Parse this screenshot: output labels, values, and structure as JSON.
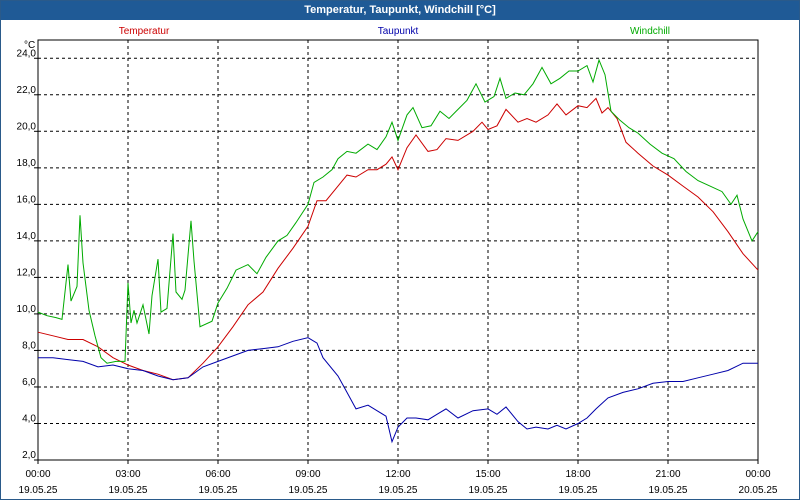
{
  "window": {
    "title": "Temperatur, Taupunkt, Windchill [°C]"
  },
  "chart_data": {
    "type": "line",
    "title": "Temperatur, Taupunkt, Windchill [°C]",
    "ylabel": "°C",
    "ylim": [
      2,
      25
    ],
    "xlim": [
      0,
      24
    ],
    "yticks": [
      2,
      4,
      6,
      8,
      10,
      12,
      14,
      16,
      18,
      20,
      22,
      24
    ],
    "ytick_labels": [
      "2,0",
      "4,0",
      "6,0",
      "8,0",
      "10,0",
      "12,0",
      "14,0",
      "16,0",
      "18,0",
      "20,0",
      "22,0",
      "24,0"
    ],
    "xticks": [
      0,
      3,
      6,
      9,
      12,
      15,
      18,
      21,
      24
    ],
    "xtick_times": [
      "00:00",
      "03:00",
      "06:00",
      "09:00",
      "12:00",
      "15:00",
      "18:00",
      "21:00",
      "00:00"
    ],
    "xtick_dates": [
      "19.05.25",
      "19.05.25",
      "19.05.25",
      "19.05.25",
      "19.05.25",
      "19.05.25",
      "19.05.25",
      "19.05.25",
      "20.05.25"
    ],
    "grid": true,
    "legend": [
      "Temperatur",
      "Taupunkt",
      "Windchill"
    ],
    "series": [
      {
        "name": "Temperatur",
        "color": "#cc0000",
        "points": [
          [
            0,
            9.0
          ],
          [
            0.5,
            8.8
          ],
          [
            1,
            8.6
          ],
          [
            1.5,
            8.6
          ],
          [
            2,
            8.2
          ],
          [
            2.5,
            7.6
          ],
          [
            3,
            7.2
          ],
          [
            3.5,
            6.9
          ],
          [
            4,
            6.7
          ],
          [
            4.5,
            6.4
          ],
          [
            5,
            6.5
          ],
          [
            5.5,
            7.3
          ],
          [
            6,
            8.2
          ],
          [
            6.5,
            9.3
          ],
          [
            7,
            10.5
          ],
          [
            7.5,
            11.2
          ],
          [
            8,
            12.5
          ],
          [
            8.5,
            13.6
          ],
          [
            9,
            14.8
          ],
          [
            9.3,
            16.2
          ],
          [
            9.6,
            16.2
          ],
          [
            10,
            17.0
          ],
          [
            10.3,
            17.6
          ],
          [
            10.6,
            17.5
          ],
          [
            11,
            17.9
          ],
          [
            11.3,
            17.9
          ],
          [
            11.6,
            18.2
          ],
          [
            11.8,
            18.6
          ],
          [
            12,
            17.9
          ],
          [
            12.3,
            19.1
          ],
          [
            12.6,
            19.8
          ],
          [
            13,
            18.9
          ],
          [
            13.3,
            19.0
          ],
          [
            13.6,
            19.6
          ],
          [
            14,
            19.5
          ],
          [
            14.5,
            20.0
          ],
          [
            14.8,
            20.5
          ],
          [
            15,
            20.1
          ],
          [
            15.3,
            20.3
          ],
          [
            15.6,
            21.2
          ],
          [
            16,
            20.5
          ],
          [
            16.3,
            20.7
          ],
          [
            16.6,
            20.5
          ],
          [
            17,
            20.9
          ],
          [
            17.3,
            21.5
          ],
          [
            17.6,
            20.9
          ],
          [
            18,
            21.4
          ],
          [
            18.3,
            21.3
          ],
          [
            18.6,
            21.8
          ],
          [
            18.8,
            21.0
          ],
          [
            19,
            21.3
          ],
          [
            19.3,
            20.7
          ],
          [
            19.6,
            19.4
          ],
          [
            20,
            18.8
          ],
          [
            20.5,
            18.1
          ],
          [
            21,
            17.6
          ],
          [
            21.5,
            17.0
          ],
          [
            22,
            16.4
          ],
          [
            22.5,
            15.6
          ],
          [
            23,
            14.5
          ],
          [
            23.5,
            13.3
          ],
          [
            24,
            12.4
          ]
        ]
      },
      {
        "name": "Taupunkt",
        "color": "#0000aa",
        "points": [
          [
            0,
            7.6
          ],
          [
            0.5,
            7.6
          ],
          [
            1,
            7.5
          ],
          [
            1.5,
            7.4
          ],
          [
            2,
            7.1
          ],
          [
            2.5,
            7.2
          ],
          [
            3,
            7.0
          ],
          [
            3.5,
            6.9
          ],
          [
            4,
            6.6
          ],
          [
            4.5,
            6.4
          ],
          [
            5,
            6.5
          ],
          [
            5.5,
            7.1
          ],
          [
            6,
            7.4
          ],
          [
            6.5,
            7.7
          ],
          [
            7,
            8.0
          ],
          [
            7.5,
            8.1
          ],
          [
            8,
            8.2
          ],
          [
            8.5,
            8.5
          ],
          [
            9,
            8.7
          ],
          [
            9.3,
            8.4
          ],
          [
            9.5,
            7.6
          ],
          [
            10,
            6.6
          ],
          [
            10.3,
            5.7
          ],
          [
            10.6,
            4.8
          ],
          [
            11,
            5.0
          ],
          [
            11.3,
            4.7
          ],
          [
            11.6,
            4.4
          ],
          [
            11.8,
            3.0
          ],
          [
            12,
            3.8
          ],
          [
            12.3,
            4.3
          ],
          [
            12.6,
            4.3
          ],
          [
            13,
            4.2
          ],
          [
            13.3,
            4.5
          ],
          [
            13.6,
            4.8
          ],
          [
            14,
            4.3
          ],
          [
            14.5,
            4.7
          ],
          [
            15,
            4.8
          ],
          [
            15.3,
            4.5
          ],
          [
            15.6,
            4.9
          ],
          [
            16,
            4.1
          ],
          [
            16.3,
            3.7
          ],
          [
            16.6,
            3.8
          ],
          [
            17,
            3.7
          ],
          [
            17.3,
            3.9
          ],
          [
            17.6,
            3.7
          ],
          [
            18,
            4.0
          ],
          [
            18.3,
            4.3
          ],
          [
            18.6,
            4.8
          ],
          [
            19,
            5.4
          ],
          [
            19.5,
            5.7
          ],
          [
            20,
            5.9
          ],
          [
            20.5,
            6.2
          ],
          [
            21,
            6.3
          ],
          [
            21.5,
            6.3
          ],
          [
            22,
            6.5
          ],
          [
            22.5,
            6.7
          ],
          [
            23,
            6.9
          ],
          [
            23.5,
            7.3
          ],
          [
            24,
            7.3
          ]
        ]
      },
      {
        "name": "Windchill",
        "color": "#00aa00",
        "points": [
          [
            0,
            10.1
          ],
          [
            0.3,
            9.9
          ],
          [
            0.6,
            9.8
          ],
          [
            0.8,
            9.7
          ],
          [
            1,
            12.7
          ],
          [
            1.1,
            10.7
          ],
          [
            1.3,
            11.5
          ],
          [
            1.4,
            15.4
          ],
          [
            1.5,
            12.8
          ],
          [
            1.7,
            10.2
          ],
          [
            1.9,
            8.8
          ],
          [
            2.1,
            7.6
          ],
          [
            2.3,
            7.3
          ],
          [
            2.6,
            7.4
          ],
          [
            2.9,
            7.4
          ],
          [
            3,
            11.7
          ],
          [
            3.1,
            9.5
          ],
          [
            3.2,
            10.2
          ],
          [
            3.3,
            9.5
          ],
          [
            3.5,
            10.5
          ],
          [
            3.7,
            8.9
          ],
          [
            3.8,
            11.0
          ],
          [
            4,
            13.0
          ],
          [
            4.1,
            10.1
          ],
          [
            4.3,
            10.3
          ],
          [
            4.5,
            14.4
          ],
          [
            4.6,
            11.2
          ],
          [
            4.8,
            10.8
          ],
          [
            4.9,
            11.3
          ],
          [
            5.1,
            15.1
          ],
          [
            5.2,
            12.9
          ],
          [
            5.4,
            9.3
          ],
          [
            5.8,
            9.6
          ],
          [
            6,
            10.6
          ],
          [
            6.3,
            11.4
          ],
          [
            6.6,
            12.4
          ],
          [
            7,
            12.7
          ],
          [
            7.3,
            12.2
          ],
          [
            7.6,
            13.1
          ],
          [
            8,
            14.0
          ],
          [
            8.3,
            14.3
          ],
          [
            8.6,
            15.0
          ],
          [
            9,
            16.0
          ],
          [
            9.2,
            17.2
          ],
          [
            9.5,
            17.5
          ],
          [
            9.8,
            17.9
          ],
          [
            10,
            18.5
          ],
          [
            10.3,
            18.9
          ],
          [
            10.6,
            18.8
          ],
          [
            11,
            19.3
          ],
          [
            11.3,
            19.0
          ],
          [
            11.6,
            19.7
          ],
          [
            11.8,
            20.5
          ],
          [
            12,
            19.5
          ],
          [
            12.3,
            20.9
          ],
          [
            12.5,
            21.3
          ],
          [
            12.8,
            20.2
          ],
          [
            13.1,
            20.3
          ],
          [
            13.4,
            21.1
          ],
          [
            13.7,
            20.7
          ],
          [
            14,
            21.2
          ],
          [
            14.3,
            21.7
          ],
          [
            14.6,
            22.6
          ],
          [
            14.9,
            21.6
          ],
          [
            15.2,
            21.9
          ],
          [
            15.4,
            22.9
          ],
          [
            15.6,
            21.8
          ],
          [
            15.9,
            22.1
          ],
          [
            16.2,
            22.0
          ],
          [
            16.5,
            22.6
          ],
          [
            16.8,
            23.5
          ],
          [
            17.1,
            22.6
          ],
          [
            17.4,
            22.9
          ],
          [
            17.7,
            23.3
          ],
          [
            18,
            23.3
          ],
          [
            18.3,
            23.6
          ],
          [
            18.5,
            22.7
          ],
          [
            18.7,
            23.9
          ],
          [
            18.9,
            23.1
          ],
          [
            19.1,
            21.1
          ],
          [
            19.4,
            20.6
          ],
          [
            19.7,
            20.2
          ],
          [
            20,
            19.9
          ],
          [
            20.4,
            19.3
          ],
          [
            20.8,
            18.8
          ],
          [
            21.2,
            18.5
          ],
          [
            21.6,
            17.8
          ],
          [
            22,
            17.3
          ],
          [
            22.4,
            17.0
          ],
          [
            22.8,
            16.7
          ],
          [
            23.1,
            16.0
          ],
          [
            23.3,
            16.5
          ],
          [
            23.5,
            15.2
          ],
          [
            23.8,
            14.0
          ],
          [
            24,
            14.5
          ]
        ]
      }
    ]
  }
}
